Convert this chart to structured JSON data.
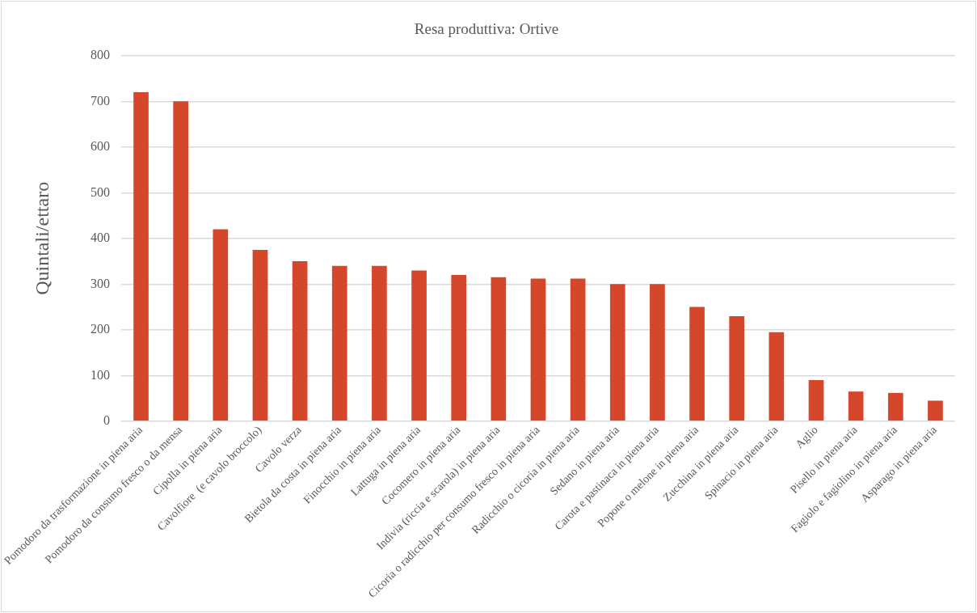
{
  "chart_data": {
    "type": "bar",
    "title": "Resa produttiva: Ortive",
    "ylabel": "Quintali/ettaro",
    "categories": [
      "Pomodoro da trasformazione in piena aria",
      "Pomodoro da consumo fresco o da mensa",
      "Cipolla in piena aria",
      "Cavolfiore  (e cavolo broccolo)",
      "Cavolo verza",
      "Bietola da costa in piena aria",
      "Finocchio in piena aria",
      "Lattuga in piena aria",
      "Cocomero in piena aria",
      "Indivia (riccia e scarola) in piena aria",
      "Cicoria o radicchio per consumo fresco in piena aria",
      "Radicchio o cicoria in piena aria",
      "Sedano in piena aria",
      "Carota e pastinaca in piena aria",
      "Popone o melone in piena aria",
      "Zucchina in piena aria",
      "Spinacio in piena aria",
      "Aglio",
      "Pisello in piena aria",
      "Fagiolo e fagiolino in piena aria",
      "Asparago in piena aria"
    ],
    "values": [
      720,
      700,
      420,
      375,
      350,
      340,
      340,
      330,
      320,
      315,
      312,
      312,
      300,
      300,
      250,
      230,
      195,
      90,
      65,
      62,
      45
    ],
    "color": "#d4472b",
    "ylim": [
      0,
      800
    ],
    "yticks": [
      0,
      100,
      200,
      300,
      400,
      500,
      600,
      700,
      800
    ],
    "grid": "y",
    "legend": false
  }
}
